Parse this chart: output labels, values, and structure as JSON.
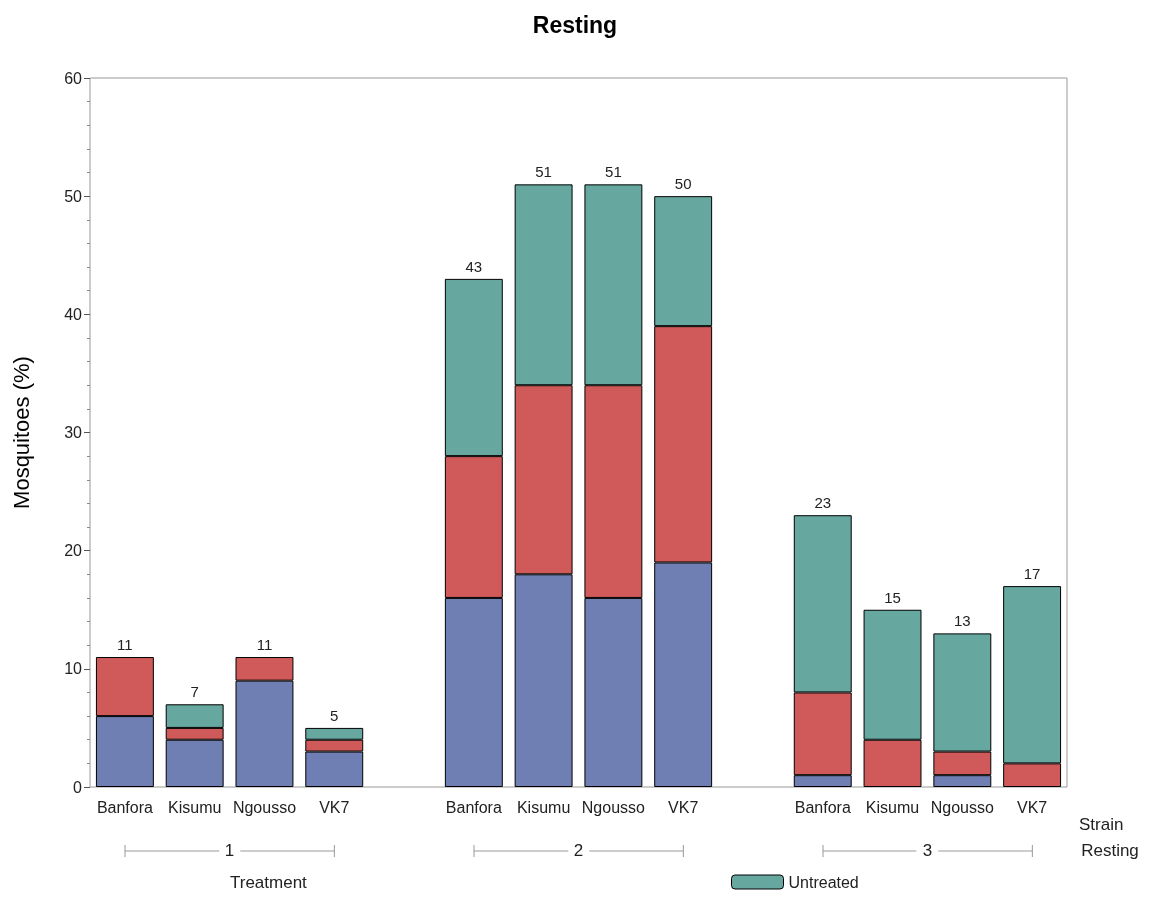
{
  "chart_data": {
    "type": "bar",
    "title": "Resting",
    "ylabel": "Mosquitoes (%)",
    "xlabel": "Strain",
    "legend_title": "Treatment",
    "categories": [
      "Banfora",
      "Kisumu",
      "Ngousso",
      "VK7",
      null,
      "Banfora",
      "Kisumu",
      "Ngousso",
      "VK7",
      null,
      "Banfora",
      "Kisumu",
      "Ngousso",
      "VK7"
    ],
    "stacked": true,
    "series": [
      {
        "color": "#6f7fb4",
        "values": [
          6,
          4,
          9,
          3,
          null,
          16,
          18,
          16,
          19,
          null,
          1,
          0,
          1,
          0
        ]
      },
      {
        "color": "#d05a5a",
        "values": [
          5,
          1,
          2,
          1,
          null,
          12,
          16,
          18,
          20,
          null,
          7,
          4,
          2,
          2
        ]
      },
      {
        "name": "Untreated",
        "color": "#66a8a0",
        "values": [
          0,
          2,
          0,
          1,
          null,
          15,
          17,
          17,
          11,
          null,
          15,
          11,
          10,
          15
        ]
      }
    ],
    "totals": [
      "11",
      "7",
      "11",
      "5",
      null,
      "43",
      "51",
      "51",
      "50",
      null,
      "23",
      "15",
      "13",
      "17"
    ],
    "annotations": [
      "1",
      "2",
      "3",
      "Resting"
    ],
    "ylim": [
      0,
      60
    ],
    "yticks": [
      0,
      10,
      20,
      30,
      40,
      50,
      60
    ],
    "grid": false,
    "legend": "bottom"
  }
}
